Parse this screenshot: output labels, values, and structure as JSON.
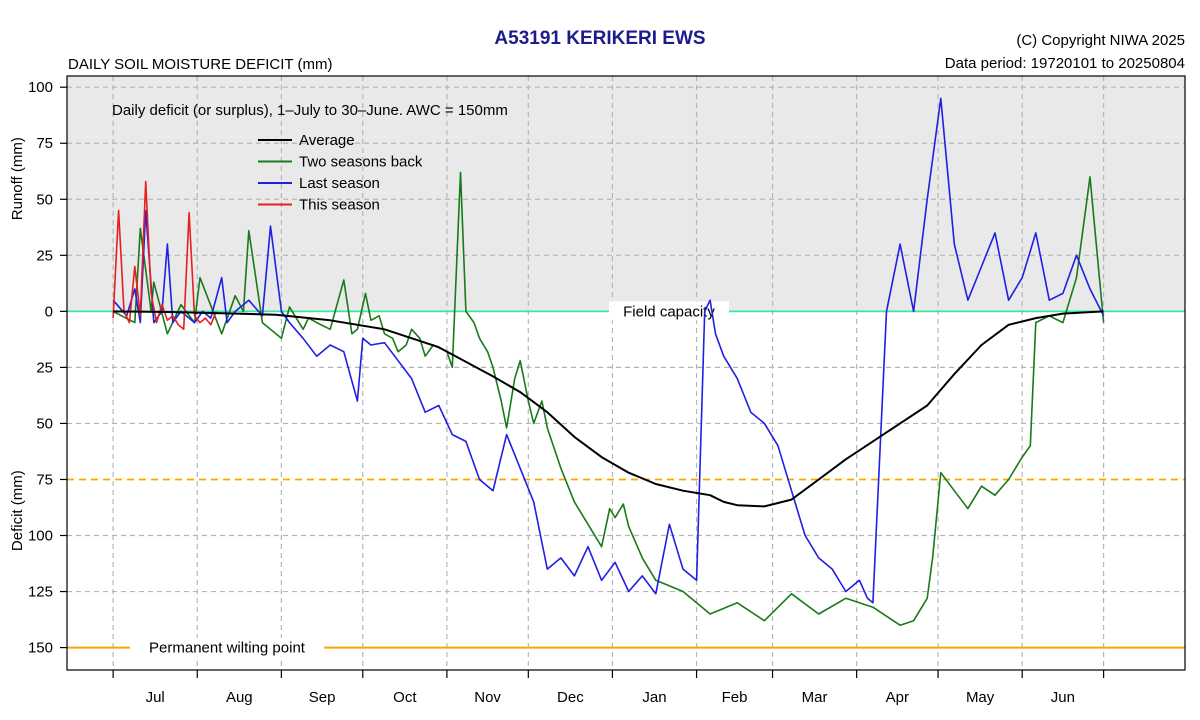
{
  "header": {
    "title": "A53191  KERIKERI EWS",
    "subtitle": "DAILY SOIL MOISTURE DEFICIT (mm)",
    "copyright": "(C) Copyright NIWA  2025",
    "data_period": "Data period:  19720101  to  20250804"
  },
  "colors": {
    "average": "#000000",
    "two_seasons_back": "#1a7a1a",
    "last_season": "#1f1fe6",
    "this_season": "#e61f1f",
    "field_capacity": "#3ce6a0",
    "reference": "#ffa500",
    "plot_upper_bg": "#e9e9e9"
  },
  "chart_data": {
    "type": "line",
    "title": "A53191  KERIKERI EWS",
    "subtitle": "DAILY SOIL MOISTURE DEFICIT (mm)",
    "annotation": "Daily deficit (or surplus), 1–July to 30–June.  AWC = 150mm",
    "ylabel_top": "Runoff (mm)",
    "ylabel_bottom": "Deficit (mm)",
    "y_axis_inverted": true,
    "ylim": [
      -105,
      160
    ],
    "yticks": [
      -100,
      -75,
      -50,
      -25,
      0,
      25,
      50,
      75,
      100,
      125,
      150
    ],
    "ytick_labels": [
      "100",
      "75",
      "50",
      "25",
      "0",
      "25",
      "50",
      "75",
      "100",
      "125",
      "150"
    ],
    "xlim": [
      -17,
      395
    ],
    "month_boundaries": [
      0,
      31,
      62,
      92,
      123,
      153,
      184,
      215,
      243,
      274,
      304,
      335,
      365
    ],
    "month_labels": [
      "Jul",
      "Aug",
      "Sep",
      "Oct",
      "Nov",
      "Dec",
      "Jan",
      "Feb",
      "Mar",
      "Apr",
      "May",
      "Jun"
    ],
    "grid": true,
    "legend_position": "top-left",
    "reference_lines": [
      {
        "name": "Field capacity",
        "y": 0
      },
      {
        "name": "",
        "y": 75
      },
      {
        "name": "Permanent wilting point",
        "y": 150
      }
    ],
    "series": [
      {
        "name": "Average",
        "key": "average",
        "x": [
          0,
          20,
          40,
          60,
          80,
          100,
          120,
          140,
          150,
          160,
          170,
          180,
          190,
          200,
          210,
          220,
          225,
          230,
          240,
          250,
          260,
          270,
          280,
          290,
          300,
          310,
          320,
          330,
          340,
          350,
          365
        ],
        "y": [
          0,
          0.3,
          0.8,
          1.5,
          4,
          8,
          16,
          29,
          36,
          45,
          56,
          65,
          72,
          77,
          80,
          82,
          85,
          86.5,
          87,
          84,
          75,
          66,
          58,
          50,
          42,
          28,
          15,
          6,
          3,
          1,
          0
        ]
      },
      {
        "name": "Two seasons back",
        "key": "two_seasons_back",
        "x": [
          0,
          8,
          10,
          14,
          15,
          20,
          25,
          30,
          32,
          40,
          45,
          48,
          50,
          55,
          60,
          62,
          65,
          70,
          72,
          75,
          80,
          85,
          88,
          90,
          93,
          95,
          98,
          100,
          103,
          105,
          108,
          110,
          113,
          115,
          118,
          123,
          125,
          128,
          130,
          133,
          135,
          138,
          140,
          143,
          145,
          148,
          150,
          153,
          155,
          158,
          160,
          165,
          170,
          175,
          180,
          183,
          185,
          188,
          190,
          195,
          200,
          210,
          220,
          230,
          240,
          250,
          260,
          270,
          280,
          290,
          295,
          300,
          302,
          305,
          310,
          315,
          320,
          325,
          330,
          335,
          338,
          340,
          345,
          350,
          355,
          360,
          365
        ],
        "y": [
          0,
          5,
          -37,
          0,
          -13,
          10,
          -3,
          5,
          -15,
          10,
          -7,
          0,
          -36,
          5,
          10,
          12,
          -2,
          8,
          3,
          5,
          8,
          -14,
          10,
          8,
          -8,
          4,
          2,
          10,
          12,
          18,
          15,
          8,
          12,
          20,
          15,
          18,
          25,
          -62,
          0,
          5,
          12,
          18,
          25,
          40,
          52,
          30,
          22,
          40,
          50,
          40,
          52,
          70,
          85,
          95,
          105,
          88,
          92,
          86,
          96,
          110,
          120,
          125,
          135,
          130,
          138,
          126,
          135,
          128,
          132,
          140,
          138,
          128,
          110,
          72,
          80,
          88,
          78,
          82,
          75,
          65,
          60,
          5,
          2,
          5,
          -15,
          -60,
          5
        ]
      },
      {
        "name": "Last season",
        "key": "last_season",
        "x": [
          0,
          5,
          8,
          10,
          12,
          15,
          18,
          20,
          22,
          25,
          30,
          33,
          36,
          40,
          42,
          45,
          50,
          55,
          58,
          62,
          65,
          70,
          75,
          80,
          85,
          90,
          92,
          95,
          100,
          105,
          110,
          115,
          120,
          125,
          130,
          135,
          140,
          145,
          150,
          155,
          160,
          165,
          170,
          175,
          180,
          185,
          190,
          195,
          200,
          205,
          210,
          215,
          218,
          220,
          222,
          225,
          230,
          235,
          240,
          245,
          250,
          255,
          260,
          265,
          270,
          275,
          278,
          280,
          285,
          290,
          295,
          300,
          305,
          310,
          315,
          320,
          325,
          330,
          335,
          340,
          345,
          350,
          355,
          360,
          365
        ],
        "y": [
          -5,
          2,
          -10,
          5,
          -45,
          5,
          0,
          -30,
          5,
          0,
          5,
          0,
          3,
          -15,
          5,
          0,
          -5,
          2,
          -38,
          0,
          5,
          12,
          20,
          15,
          18,
          40,
          12,
          15,
          14,
          22,
          30,
          45,
          42,
          55,
          58,
          75,
          80,
          55,
          70,
          85,
          115,
          110,
          118,
          105,
          120,
          112,
          125,
          118,
          126,
          95,
          115,
          120,
          0,
          -5,
          10,
          20,
          30,
          45,
          50,
          60,
          80,
          100,
          110,
          115,
          125,
          120,
          128,
          130,
          0,
          -30,
          0,
          -50,
          -95,
          -30,
          -5,
          -20,
          -35,
          -5,
          -15,
          -35,
          -5,
          -8,
          -25,
          -10,
          2
        ]
      },
      {
        "name": "This season",
        "key": "this_season",
        "x": [
          0,
          2,
          4,
          6,
          8,
          10,
          12,
          14,
          16,
          18,
          20,
          22,
          24,
          26,
          28,
          30,
          32,
          34,
          36,
          38
        ],
        "y": [
          3,
          -45,
          0,
          5,
          -20,
          2,
          -58,
          -8,
          5,
          -3,
          4,
          2,
          6,
          8,
          -44,
          2,
          5,
          3,
          6,
          0
        ]
      }
    ]
  },
  "legend": {
    "items": [
      {
        "label": "Average",
        "key": "average"
      },
      {
        "label": "Two seasons back",
        "key": "two_seasons_back"
      },
      {
        "label": "Last season",
        "key": "last_season"
      },
      {
        "label": "This season",
        "key": "this_season"
      }
    ]
  }
}
